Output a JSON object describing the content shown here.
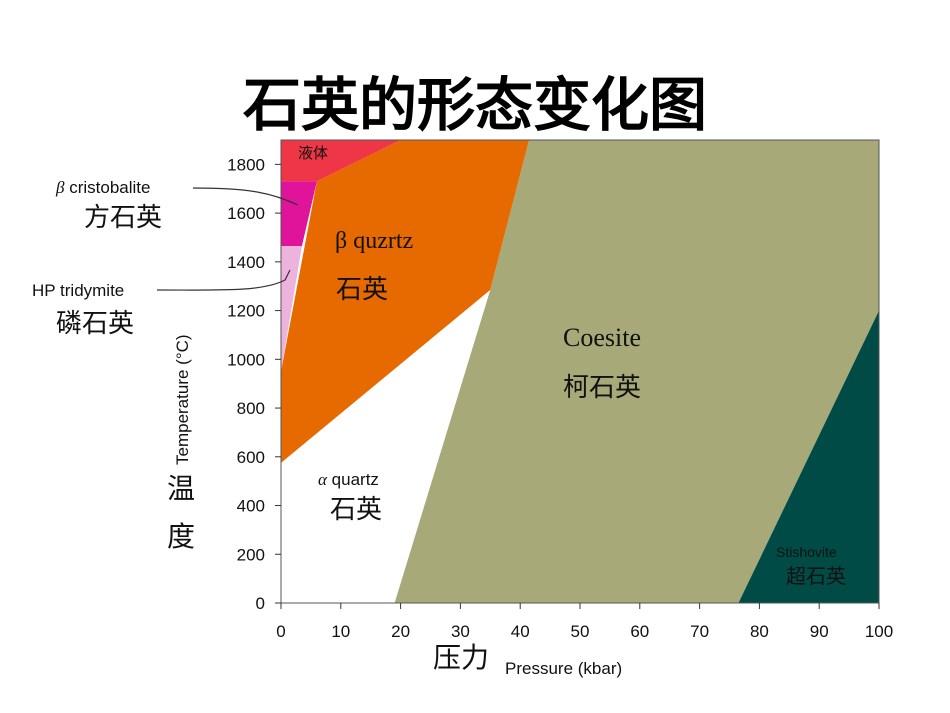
{
  "title": "石英的形态变化图",
  "chart_data": {
    "type": "area",
    "title": "石英的形态变化图",
    "xlabel": "Pressure (kbar)",
    "xlabel_cn": "压力",
    "ylabel": "Temperature (°C)",
    "ylabel_cn": [
      "温",
      "度"
    ],
    "xlim": [
      0,
      100
    ],
    "ylim": [
      0,
      1900
    ],
    "xticks": [
      0,
      10,
      20,
      30,
      40,
      50,
      60,
      70,
      80,
      90,
      100
    ],
    "yticks": [
      0,
      200,
      400,
      600,
      800,
      1000,
      1200,
      1400,
      1600,
      1800
    ],
    "grid": false,
    "regions": [
      {
        "id": "alpha",
        "label_en": "α quartz",
        "label_cn": "石英",
        "color": "#ffffff",
        "polygon": [
          [
            0,
            0
          ],
          [
            0,
            575
          ],
          [
            35,
            1285
          ],
          [
            19,
            0
          ]
        ]
      },
      {
        "id": "beta",
        "label_en": "β quzrtz",
        "label_cn": "石英",
        "color": "#e76a00",
        "polygon": [
          [
            0,
            575
          ],
          [
            35,
            1285
          ],
          [
            41.5,
            1900
          ],
          [
            20,
            1900
          ],
          [
            6,
            1730
          ],
          [
            0,
            950
          ]
        ]
      },
      {
        "id": "coesite",
        "label_en": "Coesite",
        "label_cn": "柯石英",
        "color": "#a7a979",
        "polygon": [
          [
            19,
            0
          ],
          [
            35,
            1285
          ],
          [
            41.5,
            1900
          ],
          [
            100,
            1900
          ],
          [
            100,
            1200
          ],
          [
            76.5,
            0
          ]
        ]
      },
      {
        "id": "stishovite",
        "label_en": "Stishovite",
        "label_cn": "超石英",
        "color": "#004b45",
        "polygon": [
          [
            76.5,
            0
          ],
          [
            100,
            1200
          ],
          [
            100,
            0
          ]
        ]
      },
      {
        "id": "liquid",
        "label_en": "",
        "label_cn": "液体",
        "color": "#ef3646",
        "polygon": [
          [
            0,
            1730
          ],
          [
            0,
            1900
          ],
          [
            20,
            1900
          ],
          [
            6,
            1730
          ]
        ]
      },
      {
        "id": "cristobalite",
        "label_en": "β cristobalite",
        "label_cn": "方石英",
        "color": "#e0149a",
        "polygon": [
          [
            0,
            1465
          ],
          [
            0,
            1730
          ],
          [
            6,
            1730
          ],
          [
            3.5,
            1465
          ]
        ]
      },
      {
        "id": "tridymite",
        "label_en": "HP tridymite",
        "label_cn": "磷石英",
        "color": "#eeb3dd",
        "polygon": [
          [
            0,
            950
          ],
          [
            0,
            1465
          ],
          [
            3.5,
            1465
          ]
        ]
      }
    ]
  },
  "labels": {
    "beta_greek": "β",
    "beta_word": "quzrtz",
    "beta_cn": "石英",
    "alpha_greek": "α",
    "alpha_word": "quartz",
    "alpha_cn": "石英",
    "coesite_en": "Coesite",
    "coesite_cn": "柯石英",
    "stishovite_en": "Stishovite",
    "stishovite_cn": "超石英",
    "liquid_cn": "液体",
    "cristobalite_greek": "β",
    "cristobalite_word": "cristobalite",
    "cristobalite_cn": "方石英",
    "tridymite_en": "HP tridymite",
    "tridymite_cn": "磷石英"
  }
}
